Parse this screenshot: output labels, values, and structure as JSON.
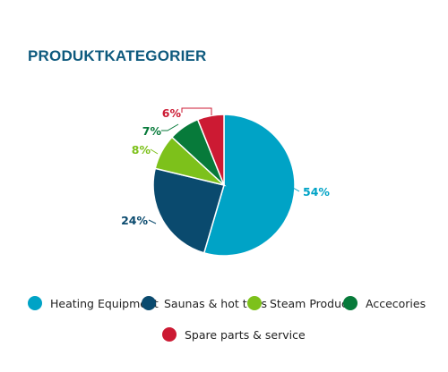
{
  "title": "PRODUKTKATEGORIER",
  "colors": {
    "title": "#0e5a7e",
    "heating": "#00a3c6",
    "saunas": "#0a4a6e",
    "steam": "#7dc11b",
    "accessories": "#077a3a",
    "spare": "#cc1a33"
  },
  "chart_data": {
    "type": "pie",
    "title": "PRODUKTKATEGORIER",
    "slices": [
      {
        "name": "Heating Equipment",
        "value": 54,
        "label": "54%",
        "color": "#00a3c6"
      },
      {
        "name": "Saunas & hot tubs",
        "value": 24,
        "label": "24%",
        "color": "#0a4a6e"
      },
      {
        "name": "Steam Product",
        "value": 8,
        "label": "8%",
        "color": "#7dc11b"
      },
      {
        "name": "Accecories",
        "value": 7,
        "label": "7%",
        "color": "#077a3a"
      },
      {
        "name": "Spare parts & service",
        "value": 6,
        "label": "6%",
        "color": "#cc1a33"
      }
    ],
    "legend_position": "bottom"
  }
}
